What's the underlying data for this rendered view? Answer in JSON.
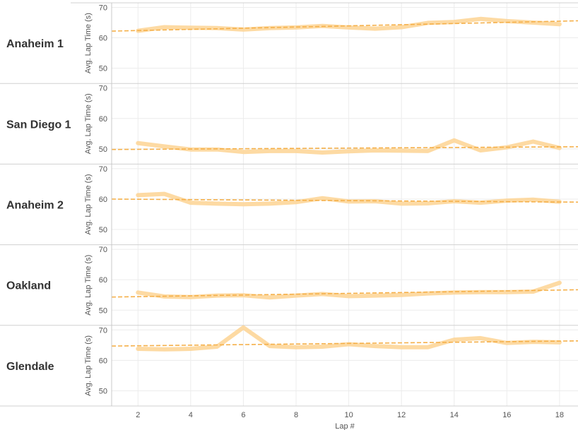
{
  "chart_data": {
    "type": "line",
    "title": "",
    "xlabel": "Lap #",
    "ylabel": "Avg. Lap Time (s)",
    "xlim": [
      1,
      18.7
    ],
    "ylim": [
      45,
      71.5
    ],
    "x_ticks": [
      2,
      4,
      6,
      8,
      10,
      12,
      14,
      16,
      18
    ],
    "y_ticks": [
      50,
      60,
      70
    ],
    "grid": true,
    "line_color": "#FDD699",
    "trend_color": "#F5B04A",
    "x": [
      2,
      3,
      4,
      5,
      6,
      7,
      8,
      9,
      10,
      11,
      12,
      13,
      14,
      15,
      16,
      17,
      18
    ],
    "series": [
      {
        "name": "Anaheim 1",
        "values": [
          62.3,
          63.5,
          63.3,
          63.2,
          62.7,
          63.2,
          63.4,
          63.9,
          63.4,
          63.0,
          63.5,
          64.9,
          65.2,
          66.2,
          65.5,
          65.0,
          64.5
        ],
        "trend": [
          62.2,
          65.6
        ]
      },
      {
        "name": "San Diego 1",
        "values": [
          51.9,
          50.8,
          49.8,
          49.8,
          49.0,
          49.3,
          49.3,
          48.8,
          49.2,
          49.5,
          49.4,
          49.3,
          52.8,
          49.5,
          50.5,
          52.4,
          50.3
        ],
        "trend": [
          49.8,
          50.7
        ]
      },
      {
        "name": "Anaheim 2",
        "values": [
          61.3,
          61.7,
          58.8,
          58.5,
          58.3,
          58.5,
          59.0,
          60.3,
          59.2,
          59.3,
          58.5,
          58.6,
          59.3,
          58.8,
          59.5,
          59.8,
          59.1
        ],
        "trend": [
          60.0,
          59.0
        ]
      },
      {
        "name": "Oakland",
        "values": [
          55.8,
          54.5,
          54.3,
          54.8,
          54.9,
          54.2,
          54.8,
          55.3,
          54.6,
          54.8,
          55.0,
          55.5,
          55.8,
          55.9,
          55.9,
          56.1,
          59.0
        ],
        "trend": [
          54.3,
          56.7
        ]
      },
      {
        "name": "Glendale",
        "values": [
          63.8,
          63.6,
          63.8,
          64.5,
          70.8,
          64.7,
          64.3,
          64.5,
          65.3,
          64.7,
          64.3,
          64.3,
          66.8,
          67.3,
          65.7,
          66.1,
          65.9
        ],
        "trend": [
          64.7,
          66.4
        ]
      }
    ]
  }
}
